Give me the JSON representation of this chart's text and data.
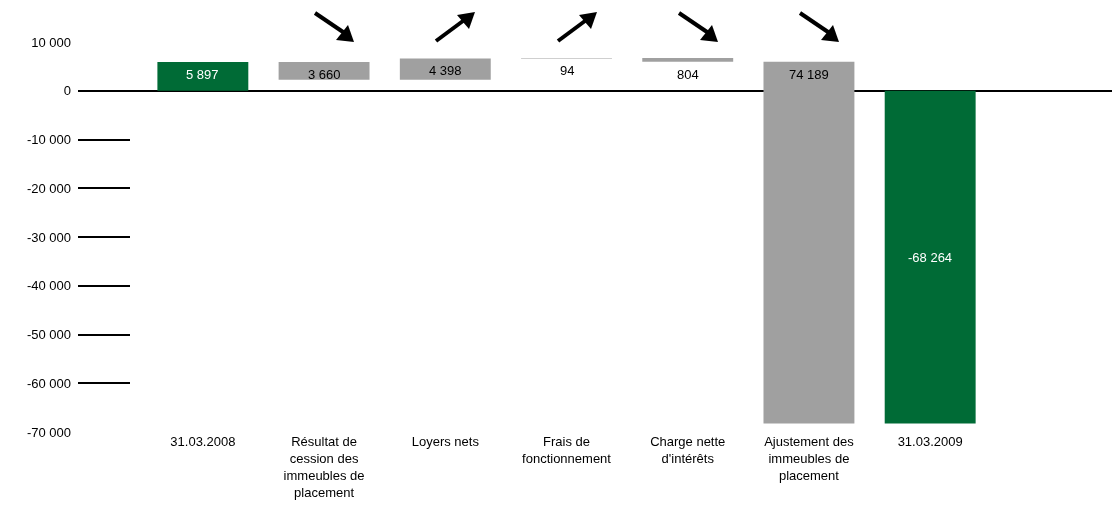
{
  "chart_data": {
    "type": "bar",
    "categories": [
      "31.03.2008",
      "Résultat de cession des immeubles de placement",
      "Loyers nets",
      "Frais de fonctionnement",
      "Charge nette d'intérêts",
      "Ajustement des immeubles de placement",
      "31.03.2009"
    ],
    "values": [
      5897,
      -3660,
      4398,
      94,
      -804,
      -74189,
      -68264
    ],
    "base": [
      0,
      5897,
      2237,
      6635,
      6729,
      5925,
      0
    ],
    "colors": [
      "#006b36",
      "#a0a0a0",
      "#a0a0a0",
      "#a0a0a0",
      "#a0a0a0",
      "#a0a0a0",
      "#006b36"
    ],
    "value_labels": [
      "5 897",
      "3 660",
      "4 398",
      "94",
      "804",
      "74 189",
      "-68 264"
    ],
    "ylim": [
      -70000,
      10000
    ],
    "yticks": [
      {
        "value": 10000,
        "label": "10 000"
      },
      0,
      {
        "value": -10000,
        "label": "-10 000"
      },
      {
        "value": -20000,
        "label": "-20 000"
      },
      {
        "value": -30000,
        "label": "-30 000"
      },
      {
        "value": -40000,
        "label": "-40 000"
      },
      {
        "value": -50000,
        "label": "-50 000"
      },
      {
        "value": -60000,
        "label": "-60 000"
      },
      {
        "value": -70000,
        "label": "-70 000"
      }
    ],
    "grid": "y"
  }
}
